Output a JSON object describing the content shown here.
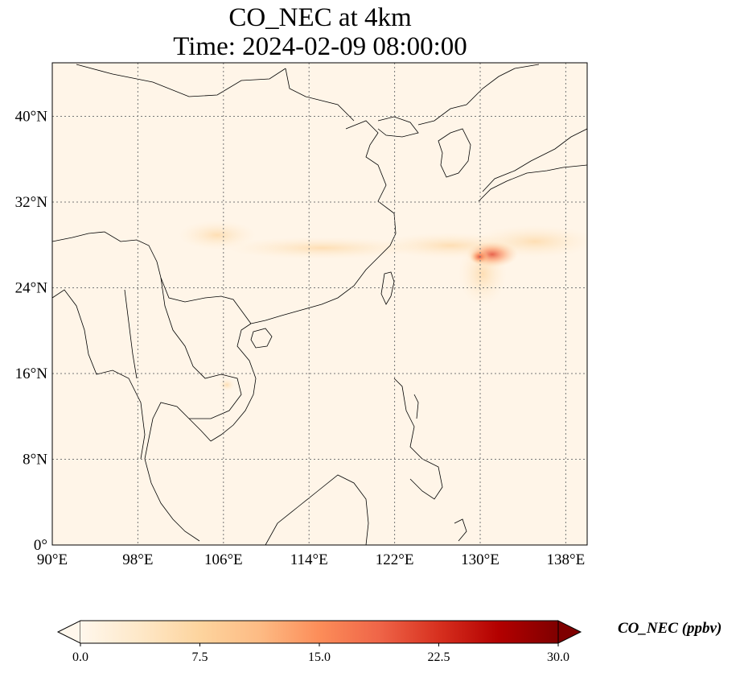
{
  "title_line1": "CO_NEC at 4km",
  "title_line2": "Time: 2024-02-09 08:00:00",
  "map": {
    "extent": {
      "lon": [
        90,
        140
      ],
      "lat": [
        0,
        45
      ]
    },
    "lon_ticks": [
      {
        "value": 90,
        "label": "90°E"
      },
      {
        "value": 98,
        "label": "98°E"
      },
      {
        "value": 106,
        "label": "106°E"
      },
      {
        "value": 114,
        "label": "114°E"
      },
      {
        "value": 122,
        "label": "122°E"
      },
      {
        "value": 130,
        "label": "130°E"
      },
      {
        "value": 138,
        "label": "138°E"
      }
    ],
    "lat_ticks": [
      {
        "value": 0,
        "label": "0°"
      },
      {
        "value": 8,
        "label": "8°N"
      },
      {
        "value": 16,
        "label": "16°N"
      },
      {
        "value": 24,
        "label": "24°N"
      },
      {
        "value": 32,
        "label": "32°N"
      },
      {
        "value": 40,
        "label": "40°N"
      }
    ],
    "gridlines": "dotted",
    "background_color": "#fff5e8"
  },
  "colorbar": {
    "label": "CO_NEC (ppbv)",
    "min": 0.0,
    "max": 30.0,
    "extend": "both",
    "ticks": [
      {
        "value": 0.0,
        "label": "0.0"
      },
      {
        "value": 7.5,
        "label": "7.5"
      },
      {
        "value": 15.0,
        "label": "15.0"
      },
      {
        "value": 22.5,
        "label": "22.5"
      },
      {
        "value": 30.0,
        "label": "30.0"
      }
    ],
    "colormap": "OrRd",
    "colors": [
      "#fff7ec",
      "#fee8c8",
      "#fdd49e",
      "#fdbb84",
      "#fc8d59",
      "#ef6548",
      "#d7301f",
      "#b30000",
      "#7f0000"
    ]
  }
}
